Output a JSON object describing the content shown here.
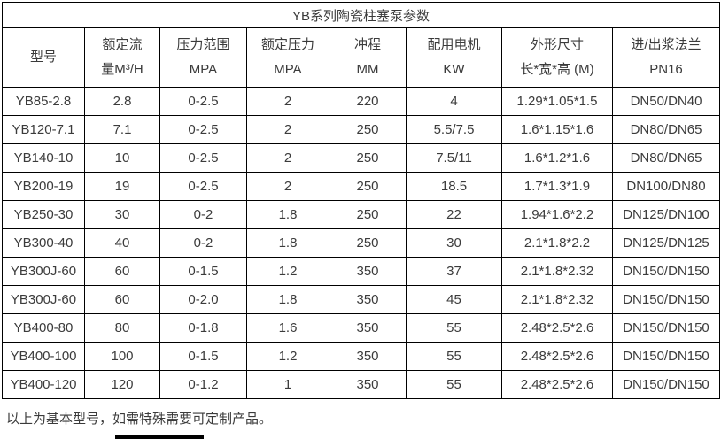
{
  "colors": {
    "background": "#ffffff",
    "border": "#000000",
    "text": "#3b3b3b"
  },
  "table": {
    "title": "YB系列陶瓷柱塞泵参数",
    "columns": [
      {
        "line1": "型号",
        "line2": ""
      },
      {
        "line1": "额定流",
        "line2": "量M³/H"
      },
      {
        "line1": "压力范围",
        "line2": "MPA"
      },
      {
        "line1": "额定压力",
        "line2": "MPA"
      },
      {
        "line1": "冲程",
        "line2": "MM"
      },
      {
        "line1": "配用电机",
        "line2": "KW"
      },
      {
        "line1": "外形尺寸",
        "line2": "长*宽*高 (M)"
      },
      {
        "line1": "进/出浆法兰",
        "line2": "PN16"
      }
    ],
    "rows": [
      [
        "YB85-2.8",
        "2.8",
        "0-2.5",
        "2",
        "220",
        "4",
        "1.29*1.05*1.5",
        "DN50/DN40"
      ],
      [
        "YB120-7.1",
        "7.1",
        "0-2.5",
        "2",
        "250",
        "5.5/7.5",
        "1.6*1.15*1.6",
        "DN80/DN65"
      ],
      [
        "YB140-10",
        "10",
        "0-2.5",
        "2",
        "250",
        "7.5/11",
        "1.6*1.2*1.6",
        "DN80/DN65"
      ],
      [
        "YB200-19",
        "19",
        "0-2.5",
        "2",
        "250",
        "18.5",
        "1.7*1.3*1.9",
        "DN100/DN80"
      ],
      [
        "YB250-30",
        "30",
        "0-2",
        "1.8",
        "250",
        "22",
        "1.94*1.6*2.2",
        "DN125/DN100"
      ],
      [
        "YB300-40",
        "40",
        "0-2",
        "1.8",
        "250",
        "30",
        "2.1*1.8*2.2",
        "DN125/DN125"
      ],
      [
        "YB300J-60",
        "60",
        "0-1.5",
        "1.2",
        "350",
        "37",
        "2.1*1.8*2.32",
        "DN150/DN150"
      ],
      [
        "YB300J-60",
        "60",
        "0-2.0",
        "1.8",
        "350",
        "45",
        "2.1*1.8*2.32",
        "DN150/DN150"
      ],
      [
        "YB400-80",
        "80",
        "0-1.8",
        "1.6",
        "350",
        "55",
        "2.48*2.5*2.6",
        "DN150/DN150"
      ],
      [
        "YB400-100",
        "100",
        "0-1.5",
        "1.2",
        "350",
        "55",
        "2.48*2.5*2.6",
        "DN150/DN150"
      ],
      [
        "YB400-120",
        "120",
        "0-1.2",
        "1",
        "350",
        "55",
        "2.48*2.5*2.6",
        "DN150/DN150"
      ]
    ],
    "footer_note": "以上为基本型号，如需特殊需要可定制产品。"
  }
}
